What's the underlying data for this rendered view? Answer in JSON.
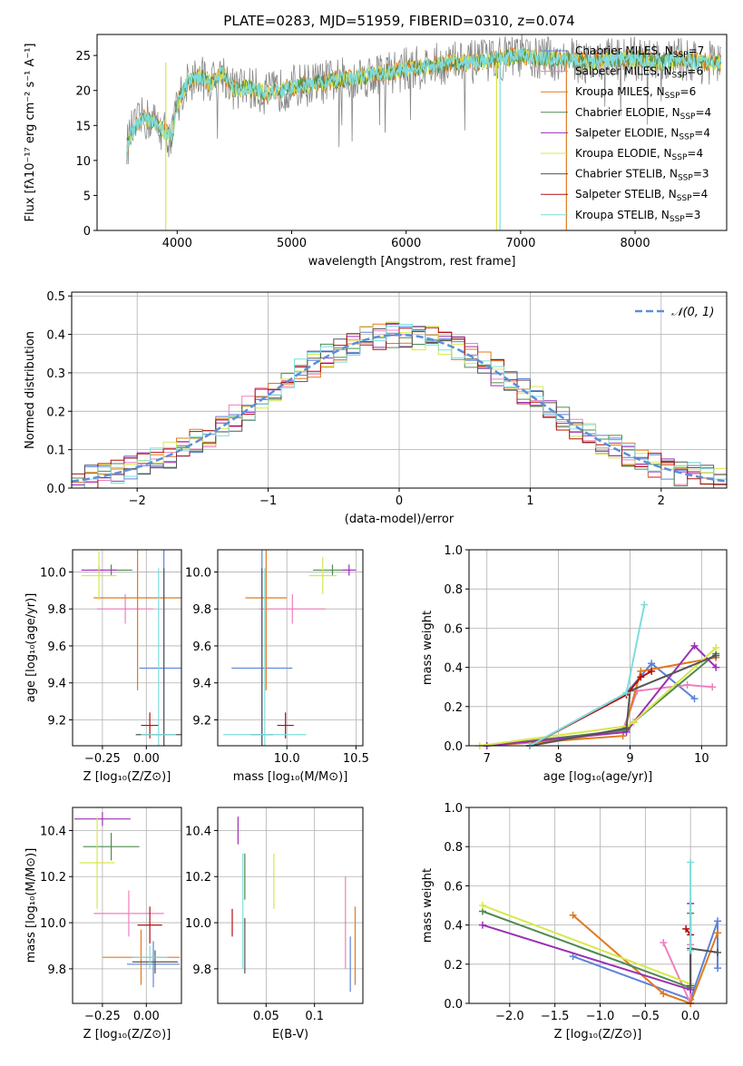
{
  "colors": {
    "chabrier_miles": "#5b84d9",
    "salpeter_miles": "#f07fbd",
    "kroupa_miles": "#e07a1f",
    "chabrier_elodie": "#4f8a4f",
    "salpeter_elodie": "#9b30b5",
    "kroupa_elodie": "#d6e84a",
    "chabrier_stelib": "#555555",
    "salpeter_stelib": "#b01010",
    "kroupa_stelib": "#7fdcdc",
    "normal_curve": "#5b8fd9",
    "spectrum_grey": "#888888"
  },
  "chart_data": [
    {
      "type": "line",
      "title": "PLATE=0283, MJD=51959, FIBERID=0310, z=0.074",
      "xlabel": "wavelength [Angstrom, rest frame]",
      "ylabel": "Flux [fλ10⁻¹⁷ erg cm⁻² s⁻¹ A⁻¹]",
      "xlim": [
        3300,
        8800
      ],
      "ylim": [
        0,
        28
      ],
      "xticks": [
        4000,
        5000,
        6000,
        7000,
        8000
      ],
      "yticks": [
        0,
        5,
        10,
        15,
        20,
        25
      ],
      "grid": false,
      "legend_position": "right",
      "legend": [
        "Chabrier MILES, N_SSP=7",
        "Salpeter MILES, N_SSP=6",
        "Kroupa MILES, N_SSP=6",
        "Chabrier ELODIE, N_SSP=4",
        "Salpeter ELODIE, N_SSP=4",
        "Kroupa ELODIE, N_SSP=4",
        "Chabrier STELIB, N_SSP=3",
        "Salpeter STELIB, N_SSP=4",
        "Kroupa STELIB, N_SSP=3"
      ],
      "spectrum_shape": {
        "x": [
          3560,
          3600,
          3700,
          3800,
          3900,
          3950,
          4000,
          4100,
          4200,
          4300,
          4400,
          4500,
          4600,
          4800,
          5000,
          5200,
          5400,
          5600,
          5800,
          6000,
          6200,
          6400,
          6600,
          6800,
          7000,
          7200,
          7400,
          7600,
          7800,
          8000,
          8200,
          8400,
          8600,
          8750
        ],
        "y": [
          12,
          14,
          16,
          15.5,
          14,
          13,
          18,
          21.5,
          22,
          21,
          22.5,
          20,
          20.5,
          19.5,
          20.5,
          21,
          21.5,
          22,
          22.5,
          23,
          23.5,
          24,
          24,
          24.5,
          25,
          24.5,
          24.5,
          24,
          24.5,
          24.5,
          24,
          24.5,
          24,
          24
        ]
      }
    },
    {
      "type": "line",
      "xlabel": "(data-model)/error",
      "ylabel": "Normed distribution",
      "xlim": [
        -2.5,
        2.5
      ],
      "ylim": [
        0,
        0.51
      ],
      "xticks": [
        -2,
        -1,
        0,
        1,
        2
      ],
      "yticks": [
        0.0,
        0.1,
        0.2,
        0.3,
        0.4,
        0.5
      ],
      "grid": true,
      "legend_position": "top-right",
      "legend": [
        "𝒩(0, 1)"
      ],
      "reference": {
        "name": "𝒩(0, 1)",
        "mean": 0,
        "sigma": 1
      },
      "histogram_bin_width": 0.1
    },
    {
      "type": "scatter",
      "xlabel": "Z [log₁₀(Z/Z⊙)]",
      "ylabel": "age  [log₁₀(age/yr)]",
      "xlim": [
        -0.42,
        0.2
      ],
      "ylim": [
        9.06,
        10.12
      ],
      "xticks": [
        -0.25,
        0.0
      ],
      "yticks": [
        9.2,
        9.4,
        9.6,
        9.8,
        10.0
      ],
      "grid": true,
      "points": [
        {
          "x": 0.1,
          "y": 9.48,
          "xerr": 0.14,
          "yerr": 0.65,
          "color": "chabrier_miles"
        },
        {
          "x": -0.12,
          "y": 9.8,
          "xerr": 0.16,
          "yerr": 0.08,
          "color": "salpeter_miles"
        },
        {
          "x": -0.05,
          "y": 9.86,
          "xerr": 0.25,
          "yerr": 0.5,
          "color": "kroupa_miles"
        },
        {
          "x": -0.2,
          "y": 10.01,
          "xerr": 0.12,
          "yerr": 0.03,
          "color": "chabrier_elodie"
        },
        {
          "x": -0.27,
          "y": 10.01,
          "xerr": 0.1,
          "yerr": 0.02,
          "color": "salpeter_elodie"
        },
        {
          "x": -0.27,
          "y": 9.98,
          "xerr": 0.1,
          "yerr": 0.13,
          "color": "kroupa_elodie"
        },
        {
          "x": 0.1,
          "y": 9.12,
          "xerr": 0.16,
          "yerr": 0.9,
          "color": "chabrier_stelib"
        },
        {
          "x": 0.02,
          "y": 9.17,
          "xerr": 0.05,
          "yerr": 0.07,
          "color": "salpeter_stelib"
        },
        {
          "x": 0.07,
          "y": 9.12,
          "xerr": 0.1,
          "yerr": 0.9,
          "color": "kroupa_stelib"
        }
      ]
    },
    {
      "type": "scatter",
      "xlabel": "mass [log₁₀(M/M⊙)]",
      "ylabel": "",
      "xlim": [
        9.5,
        10.55
      ],
      "ylim": [
        9.06,
        10.12
      ],
      "xticks": [
        10.0,
        10.5
      ],
      "yticks": [
        9.2,
        9.4,
        9.6,
        9.8,
        10.0
      ],
      "grid": true,
      "points": [
        {
          "x": 9.82,
          "y": 9.48,
          "xerr": 0.22,
          "yerr": 0.65,
          "color": "chabrier_miles"
        },
        {
          "x": 10.04,
          "y": 9.8,
          "xerr": 0.24,
          "yerr": 0.08,
          "color": "salpeter_miles"
        },
        {
          "x": 9.85,
          "y": 9.86,
          "xerr": 0.15,
          "yerr": 0.5,
          "color": "kroupa_miles"
        },
        {
          "x": 10.33,
          "y": 10.01,
          "xerr": 0.14,
          "yerr": 0.03,
          "color": "chabrier_elodie"
        },
        {
          "x": 10.45,
          "y": 10.01,
          "xerr": 0.05,
          "yerr": 0.03,
          "color": "salpeter_elodie"
        },
        {
          "x": 10.26,
          "y": 9.98,
          "xerr": 0.1,
          "yerr": 0.1,
          "color": "kroupa_elodie"
        },
        {
          "x": 9.82,
          "y": 9.12,
          "xerr": 0.08,
          "yerr": 0.9,
          "color": "chabrier_stelib"
        },
        {
          "x": 9.99,
          "y": 9.17,
          "xerr": 0.06,
          "yerr": 0.07,
          "color": "salpeter_stelib"
        },
        {
          "x": 9.84,
          "y": 9.12,
          "xerr": 0.3,
          "yerr": 0.9,
          "color": "kroupa_stelib"
        }
      ]
    },
    {
      "type": "line",
      "xlabel": "age  [log₁₀(age/yr)]",
      "ylabel": "mass weight",
      "xlim": [
        6.75,
        10.35
      ],
      "ylim": [
        0,
        1.0
      ],
      "xticks": [
        7,
        8,
        9,
        10
      ],
      "yticks": [
        0.0,
        0.2,
        0.4,
        0.6,
        0.8,
        1.0
      ],
      "grid": true,
      "series": [
        {
          "color": "chabrier_miles",
          "x": [
            7.6,
            8.95,
            9.3,
            9.9
          ],
          "y": [
            0.0,
            0.27,
            0.42,
            0.24
          ]
        },
        {
          "color": "salpeter_miles",
          "x": [
            7.6,
            8.9,
            9.1,
            9.8,
            10.15
          ],
          "y": [
            0.0,
            0.08,
            0.28,
            0.31,
            0.3
          ]
        },
        {
          "color": "kroupa_miles",
          "x": [
            7.0,
            8.9,
            9.15,
            10.2
          ],
          "y": [
            0.0,
            0.05,
            0.38,
            0.45
          ]
        },
        {
          "color": "chabrier_elodie",
          "x": [
            7.0,
            8.95,
            9.05,
            10.2
          ],
          "y": [
            0.0,
            0.08,
            0.12,
            0.47
          ]
        },
        {
          "color": "salpeter_elodie",
          "x": [
            7.0,
            8.95,
            9.05,
            9.9,
            10.2
          ],
          "y": [
            0.0,
            0.07,
            0.12,
            0.51,
            0.4
          ]
        },
        {
          "color": "kroupa_elodie",
          "x": [
            6.9,
            8.95,
            9.05,
            10.2
          ],
          "y": [
            0.0,
            0.1,
            0.12,
            0.5
          ]
        },
        {
          "color": "chabrier_stelib",
          "x": [
            7.6,
            8.95,
            9.0,
            10.2
          ],
          "y": [
            0.0,
            0.09,
            0.28,
            0.46
          ]
        },
        {
          "color": "salpeter_stelib",
          "x": [
            7.6,
            8.95,
            9.15,
            9.3
          ],
          "y": [
            0.0,
            0.26,
            0.35,
            0.38
          ]
        },
        {
          "color": "kroupa_stelib",
          "x": [
            7.6,
            8.95,
            9.2
          ],
          "y": [
            0.0,
            0.27,
            0.72
          ]
        }
      ]
    },
    {
      "type": "scatter",
      "xlabel": "Z [log₁₀(Z/Z⊙)]",
      "ylabel": "mass [log₁₀(M/M⊙)]",
      "xlim": [
        -0.42,
        0.2
      ],
      "ylim": [
        9.65,
        10.5
      ],
      "xticks": [
        -0.25,
        0.0
      ],
      "yticks": [
        9.8,
        10.0,
        10.2,
        10.4
      ],
      "grid": true,
      "points": [
        {
          "x": 0.04,
          "y": 9.82,
          "xerr": 0.15,
          "yerr": 0.1,
          "color": "chabrier_miles"
        },
        {
          "x": -0.1,
          "y": 10.04,
          "xerr": 0.2,
          "yerr": 0.1,
          "color": "salpeter_miles"
        },
        {
          "x": -0.03,
          "y": 9.85,
          "xerr": 0.22,
          "yerr": 0.12,
          "color": "kroupa_miles"
        },
        {
          "x": -0.2,
          "y": 10.33,
          "xerr": 0.16,
          "yerr": 0.06,
          "color": "chabrier_elodie"
        },
        {
          "x": -0.25,
          "y": 10.45,
          "xerr": 0.16,
          "yerr": 0.03,
          "color": "salpeter_elodie"
        },
        {
          "x": -0.28,
          "y": 10.26,
          "xerr": 0.1,
          "yerr": 0.2,
          "color": "kroupa_elodie"
        },
        {
          "x": 0.05,
          "y": 9.83,
          "xerr": 0.13,
          "yerr": 0.05,
          "color": "chabrier_stelib"
        },
        {
          "x": 0.02,
          "y": 9.99,
          "xerr": 0.07,
          "yerr": 0.08,
          "color": "salpeter_stelib"
        },
        {
          "x": 0.02,
          "y": 9.85,
          "xerr": 0.1,
          "yerr": 0.05,
          "color": "kroupa_stelib"
        }
      ]
    },
    {
      "type": "scatter",
      "xlabel": "E(B-V)",
      "ylabel": "",
      "xlim": [
        0.0,
        0.15
      ],
      "ylim": [
        9.65,
        10.5
      ],
      "xticks": [
        0.05,
        0.1
      ],
      "yticks": [
        9.8,
        10.0,
        10.2,
        10.4
      ],
      "grid": true,
      "points": [
        {
          "x": 0.137,
          "y": 9.82,
          "yerr": 0.12,
          "color": "chabrier_miles"
        },
        {
          "x": 0.132,
          "y": 10.0,
          "yerr": 0.2,
          "color": "salpeter_miles"
        },
        {
          "x": 0.142,
          "y": 9.9,
          "yerr": 0.17,
          "color": "kroupa_miles"
        },
        {
          "x": 0.028,
          "y": 10.2,
          "yerr": 0.1,
          "color": "chabrier_elodie"
        },
        {
          "x": 0.021,
          "y": 10.4,
          "yerr": 0.06,
          "color": "salpeter_elodie"
        },
        {
          "x": 0.058,
          "y": 10.18,
          "yerr": 0.12,
          "color": "kroupa_elodie"
        },
        {
          "x": 0.028,
          "y": 9.9,
          "yerr": 0.12,
          "color": "chabrier_stelib"
        },
        {
          "x": 0.015,
          "y": 10.0,
          "yerr": 0.06,
          "color": "salpeter_stelib"
        },
        {
          "x": 0.026,
          "y": 10.05,
          "yerr": 0.25,
          "color": "kroupa_stelib"
        }
      ]
    },
    {
      "type": "line",
      "xlabel": "Z [log₁₀(Z/Z⊙)]",
      "ylabel": "mass weight",
      "xlim": [
        -2.45,
        0.4
      ],
      "ylim": [
        0,
        1.0
      ],
      "xticks": [
        -2.0,
        -1.5,
        -1.0,
        -0.5,
        0.0
      ],
      "yticks": [
        0.0,
        0.2,
        0.4,
        0.6,
        0.8,
        1.0
      ],
      "grid": true,
      "series": [
        {
          "color": "chabrier_miles",
          "x": [
            -1.3,
            0.0,
            0.3,
            0.3
          ],
          "y": [
            0.24,
            0.02,
            0.42,
            0.18
          ]
        },
        {
          "color": "salpeter_miles",
          "x": [
            -0.3,
            0.0,
            0.0
          ],
          "y": [
            0.31,
            0.0,
            0.3
          ]
        },
        {
          "color": "kroupa_miles",
          "x": [
            -1.3,
            -0.3,
            0.0,
            0.3
          ],
          "y": [
            0.45,
            0.05,
            0.0,
            0.36
          ]
        },
        {
          "color": "chabrier_elodie",
          "x": [
            -2.3,
            0.0,
            0.0
          ],
          "y": [
            0.47,
            0.08,
            0.46
          ]
        },
        {
          "color": "salpeter_elodie",
          "x": [
            -2.3,
            0.0,
            0.0
          ],
          "y": [
            0.4,
            0.07,
            0.51
          ]
        },
        {
          "color": "kroupa_elodie",
          "x": [
            -2.3,
            0.0
          ],
          "y": [
            0.5,
            0.1
          ]
        },
        {
          "color": "chabrier_stelib",
          "x": [
            0.0,
            0.0,
            0.3
          ],
          "y": [
            0.09,
            0.28,
            0.26
          ]
        },
        {
          "color": "salpeter_stelib",
          "x": [
            -0.05,
            0.0
          ],
          "y": [
            0.38,
            0.35
          ]
        },
        {
          "color": "kroupa_stelib",
          "x": [
            0.0,
            0.0
          ],
          "y": [
            0.27,
            0.72
          ]
        }
      ]
    }
  ]
}
